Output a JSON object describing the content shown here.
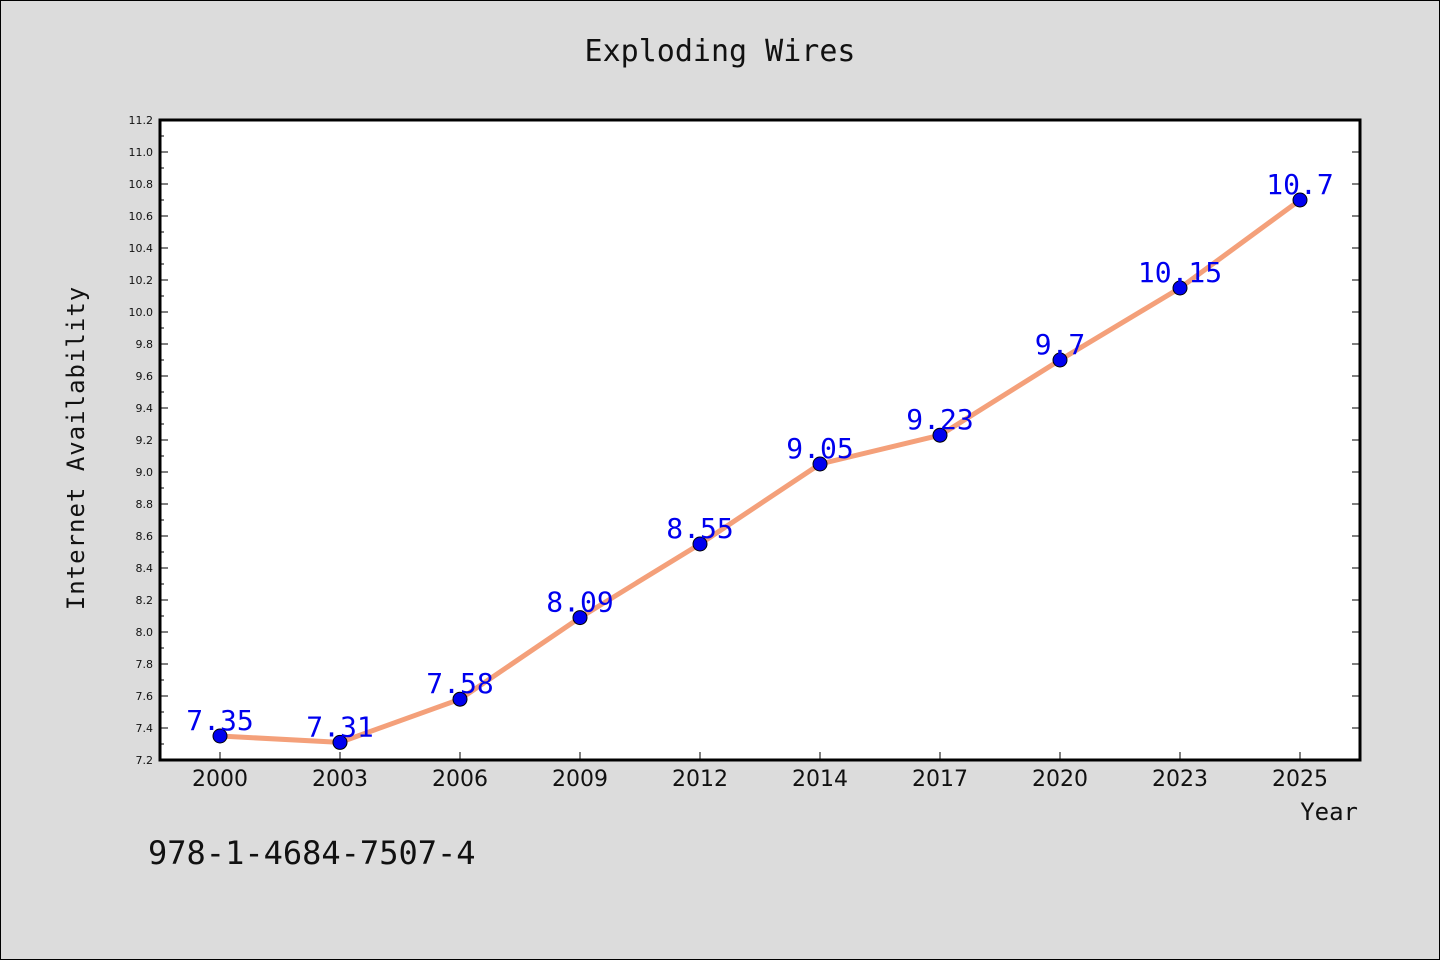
{
  "chart_data": {
    "type": "line",
    "title": "Exploding Wires",
    "xlabel": "Year",
    "ylabel": "Internet Availability",
    "categories": [
      "2000",
      "2003",
      "2006",
      "2009",
      "2012",
      "2014",
      "2017",
      "2020",
      "2023",
      "2025"
    ],
    "series": [
      {
        "values": [
          7.35,
          7.31,
          7.58,
          8.09,
          8.55,
          9.05,
          9.23,
          9.7,
          10.15,
          10.7
        ],
        "data_labels": [
          "7.35",
          "7.31",
          "7.58",
          "8.09",
          "8.55",
          "9.05",
          "9.23",
          "9.7",
          "10.15",
          "10.7"
        ],
        "line_color": "#f4a07a",
        "marker_color": "#0000ee",
        "label_color": "#0000ee"
      }
    ],
    "ylim": [
      7.2,
      11.2
    ],
    "y_ticks": [
      "7.2",
      "7.4",
      "7.6",
      "7.8",
      "8.0",
      "8.2",
      "8.4",
      "8.6",
      "8.8",
      "9.0",
      "9.2",
      "9.4",
      "9.6",
      "9.8",
      "10.0",
      "10.2",
      "10.4",
      "10.6",
      "10.8",
      "11.0",
      "11.2"
    ],
    "grid": false,
    "legend": "none"
  },
  "footer": {
    "text": "978-1-4684-7507-4"
  },
  "colors": {
    "background": "#dcdcdc",
    "plot_background": "#ffffff"
  }
}
